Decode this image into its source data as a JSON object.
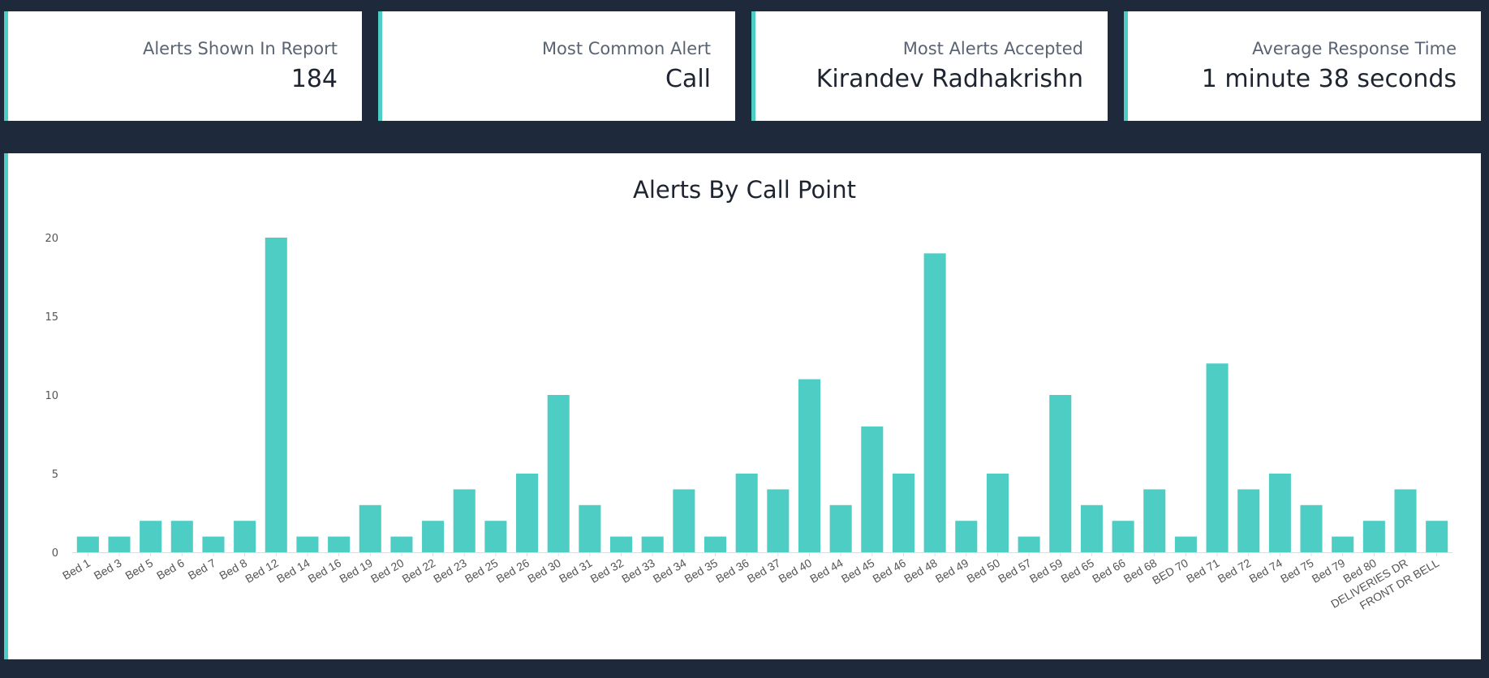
{
  "cards": [
    {
      "label": "Alerts Shown In Report",
      "value": "184"
    },
    {
      "label": "Most Common Alert",
      "value": "Call"
    },
    {
      "label": "Most Alerts Accepted",
      "value": "Kirandev Radhakrishn"
    },
    {
      "label": "Average Response Time",
      "value": "1 minute 38 seconds"
    }
  ],
  "colors": {
    "accent": "#4ecdc4",
    "background": "#1e293b"
  },
  "chart_data": {
    "type": "bar",
    "title": "Alerts By Call Point",
    "xlabel": "",
    "ylabel": "",
    "ylim": [
      0,
      20
    ],
    "yticks": [
      "0",
      "5",
      "10",
      "15",
      "20"
    ],
    "grid": false,
    "categories": [
      "Bed 1",
      "Bed 3",
      "Bed 5",
      "Bed 6",
      "Bed 7",
      "Bed 8",
      "Bed 12",
      "Bed 14",
      "Bed 16",
      "Bed 19",
      "Bed 20",
      "Bed 22",
      "Bed 23",
      "Bed 25",
      "Bed 26",
      "Bed 30",
      "Bed 31",
      "Bed 32",
      "Bed 33",
      "Bed 34",
      "Bed 35",
      "Bed 36",
      "Bed 37",
      "Bed 40",
      "Bed 44",
      "Bed 45",
      "Bed 46",
      "Bed 48",
      "Bed 49",
      "Bed 50",
      "Bed 57",
      "Bed 59",
      "Bed 65",
      "Bed 66",
      "Bed 68",
      "BED 70",
      "Bed 71",
      "Bed 72",
      "Bed 74",
      "Bed 75",
      "Bed 79",
      "Bed 80",
      "DELIVERIES DR",
      "FRONT DR BELL"
    ],
    "values": [
      1,
      1,
      2,
      2,
      1,
      2,
      20,
      1,
      1,
      3,
      1,
      2,
      4,
      2,
      5,
      10,
      3,
      1,
      1,
      4,
      1,
      5,
      4,
      11,
      3,
      8,
      5,
      19,
      2,
      5,
      1,
      10,
      3,
      2,
      4,
      1,
      12,
      4,
      5,
      3,
      1,
      2,
      4,
      2
    ]
  }
}
